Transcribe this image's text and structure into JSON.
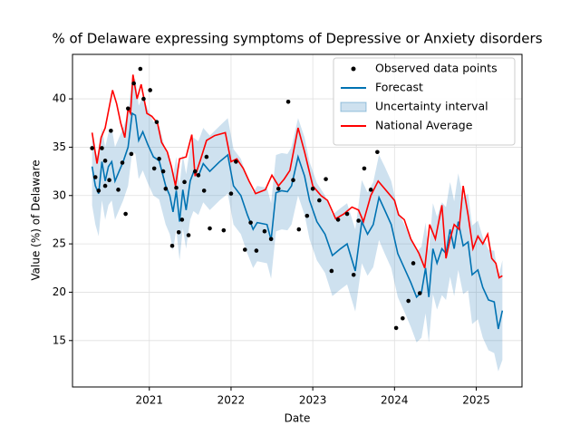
{
  "chart_data": {
    "type": "line",
    "title": "% of Delaware expressing symptoms of Depressive or Anxiety disorders",
    "x_label": "Date",
    "y_label": "Value (%) of Delaware",
    "xlim": [
      2020.06,
      2025.56
    ],
    "ylim": [
      10.2,
      44.6
    ],
    "xticks": [
      2021,
      2022,
      2023,
      2024,
      2025
    ],
    "yticks": [
      15,
      20,
      25,
      30,
      35,
      40
    ],
    "grid": true,
    "legend": "upper right",
    "series": [
      {
        "name": "Observed data points",
        "kind": "scatter",
        "color": "#000000",
        "x": [
          2020.3,
          2020.34,
          2020.38,
          2020.42,
          2020.46,
          2020.46,
          2020.51,
          2020.53,
          2020.62,
          2020.67,
          2020.71,
          2020.74,
          2020.78,
          2020.81,
          2020.89,
          2020.93,
          2021.01,
          2021.06,
          2021.09,
          2021.12,
          2021.17,
          2021.2,
          2021.28,
          2021.33,
          2021.36,
          2021.4,
          2021.43,
          2021.48,
          2021.56,
          2021.6,
          2021.67,
          2021.7,
          2021.74,
          2021.91,
          2022.0,
          2022.06,
          2022.17,
          2022.24,
          2022.31,
          2022.41,
          2022.49,
          2022.58,
          2022.7,
          2022.76,
          2022.83,
          2022.93,
          2023.0,
          2023.08,
          2023.16,
          2023.23,
          2023.31,
          2023.42,
          2023.5,
          2023.56,
          2023.63,
          2023.71,
          2023.79,
          2024.02,
          2024.1,
          2024.17,
          2024.23,
          2024.31
        ],
        "values": [
          34.9,
          31.9,
          30.5,
          34.9,
          33.6,
          31.0,
          31.6,
          36.7,
          30.6,
          33.4,
          28.1,
          39.0,
          34.3,
          41.6,
          43.1,
          40.0,
          40.9,
          32.8,
          37.6,
          33.8,
          32.5,
          30.7,
          24.8,
          30.8,
          26.2,
          27.5,
          31.4,
          25.9,
          32.5,
          32.1,
          30.5,
          34.0,
          26.6,
          26.4,
          30.2,
          33.5,
          24.4,
          27.2,
          24.3,
          26.3,
          25.5,
          30.7,
          39.7,
          31.6,
          26.5,
          27.9,
          30.7,
          29.5,
          31.7,
          22.2,
          27.5,
          28.1,
          21.8,
          27.4,
          32.8,
          30.6,
          34.5,
          16.3,
          17.3,
          19.1,
          23.0,
          19.9
        ]
      },
      {
        "name": "Forecast",
        "kind": "line",
        "color": "#0072b2",
        "x": [
          2020.3,
          2020.34,
          2020.38,
          2020.42,
          2020.46,
          2020.5,
          2020.54,
          2020.58,
          2020.63,
          2020.68,
          2020.74,
          2020.79,
          2020.83,
          2020.87,
          2020.92,
          2020.98,
          2021.05,
          2021.12,
          2021.2,
          2021.25,
          2021.29,
          2021.33,
          2021.37,
          2021.41,
          2021.45,
          2021.5,
          2021.54,
          2021.6,
          2021.66,
          2021.74,
          2021.86,
          2021.96,
          2022.03,
          2022.12,
          2022.2,
          2022.27,
          2022.32,
          2022.44,
          2022.49,
          2022.55,
          2022.62,
          2022.69,
          2022.74,
          2022.82,
          2022.9,
          2022.96,
          2023.05,
          2023.15,
          2023.24,
          2023.34,
          2023.42,
          2023.52,
          2023.6,
          2023.67,
          2023.74,
          2023.81,
          2023.88,
          2023.96,
          2024.04,
          2024.12,
          2024.2,
          2024.27,
          2024.33,
          2024.38,
          2024.42,
          2024.47,
          2024.52,
          2024.58,
          2024.63,
          2024.68,
          2024.73,
          2024.78,
          2024.84,
          2024.9,
          2024.95,
          2025.02,
          2025.08,
          2025.15,
          2025.22,
          2025.27,
          2025.32
        ],
        "values": [
          33.0,
          31.0,
          30.2,
          33.5,
          31.5,
          33.0,
          33.5,
          31.5,
          32.5,
          33.5,
          35.0,
          38.5,
          38.3,
          35.7,
          36.6,
          35.3,
          34.0,
          33.6,
          31.0,
          30.0,
          28.3,
          30.5,
          27.3,
          30.6,
          28.5,
          31.5,
          32.4,
          32.0,
          33.3,
          32.5,
          33.5,
          34.2,
          31.0,
          30.0,
          28.0,
          26.5,
          27.2,
          27.0,
          25.4,
          30.3,
          30.5,
          30.4,
          31.0,
          34.0,
          32.0,
          29.5,
          27.3,
          26.0,
          23.8,
          24.5,
          25.0,
          22.2,
          27.3,
          26.0,
          27.0,
          29.8,
          28.5,
          27.0,
          24.0,
          22.5,
          21.0,
          19.5,
          20.0,
          22.5,
          19.5,
          24.5,
          23.0,
          24.5,
          24.0,
          26.5,
          24.5,
          27.3,
          24.8,
          25.2,
          21.8,
          22.3,
          20.5,
          19.2,
          19.0,
          16.2,
          18.1
        ]
      },
      {
        "name": "Uncertainty interval",
        "kind": "band",
        "color": "#1f77b4",
        "x": [
          2020.3,
          2020.34,
          2020.38,
          2020.42,
          2020.46,
          2020.5,
          2020.54,
          2020.58,
          2020.63,
          2020.68,
          2020.74,
          2020.79,
          2020.83,
          2020.87,
          2020.92,
          2020.98,
          2021.05,
          2021.12,
          2021.2,
          2021.25,
          2021.29,
          2021.33,
          2021.37,
          2021.41,
          2021.45,
          2021.5,
          2021.54,
          2021.6,
          2021.66,
          2021.74,
          2021.86,
          2021.96,
          2022.03,
          2022.12,
          2022.2,
          2022.27,
          2022.32,
          2022.44,
          2022.49,
          2022.55,
          2022.62,
          2022.69,
          2022.74,
          2022.82,
          2022.9,
          2022.96,
          2023.05,
          2023.15,
          2023.24,
          2023.34,
          2023.42,
          2023.52,
          2023.6,
          2023.67,
          2023.74,
          2023.81,
          2023.88,
          2023.96,
          2024.04,
          2024.12,
          2024.2,
          2024.27,
          2024.33,
          2024.38,
          2024.42,
          2024.47,
          2024.52,
          2024.58,
          2024.63,
          2024.68,
          2024.73,
          2024.78,
          2024.84,
          2024.9,
          2024.95,
          2025.02,
          2025.08,
          2025.15,
          2025.22,
          2025.27,
          2025.32
        ],
        "lower": [
          29.0,
          27.0,
          25.8,
          29.5,
          27.5,
          29.0,
          29.5,
          27.5,
          28.5,
          29.5,
          31.0,
          34.5,
          34.3,
          31.7,
          32.6,
          31.3,
          30.0,
          29.6,
          27.0,
          26.0,
          24.3,
          26.5,
          23.3,
          26.6,
          24.5,
          27.5,
          28.4,
          28.0,
          29.3,
          28.5,
          29.5,
          30.2,
          27.0,
          26.0,
          24.0,
          22.5,
          23.2,
          23.0,
          21.4,
          26.3,
          26.5,
          26.4,
          27.0,
          30.0,
          28.0,
          25.5,
          23.3,
          22.0,
          19.6,
          20.3,
          20.8,
          18.0,
          23.0,
          21.7,
          22.6,
          25.4,
          24.0,
          22.5,
          19.5,
          18.0,
          16.4,
          14.8,
          15.3,
          17.8,
          14.8,
          19.8,
          18.2,
          19.7,
          19.2,
          21.6,
          19.6,
          22.3,
          19.8,
          20.2,
          16.7,
          17.2,
          15.3,
          14.0,
          13.7,
          11.8,
          13.0
        ],
        "upper": [
          36.5,
          34.5,
          33.8,
          37.0,
          35.0,
          36.5,
          37.0,
          35.0,
          36.0,
          37.0,
          38.5,
          42.2,
          42.0,
          39.3,
          40.2,
          39.0,
          37.6,
          37.2,
          34.6,
          33.6,
          32.0,
          34.0,
          31.0,
          34.2,
          32.2,
          35.0,
          36.0,
          35.6,
          37.0,
          36.2,
          37.2,
          38.0,
          34.8,
          33.8,
          31.8,
          30.3,
          31.0,
          30.8,
          29.2,
          34.2,
          34.4,
          34.3,
          35.0,
          38.0,
          36.0,
          33.5,
          31.3,
          30.0,
          28.0,
          28.7,
          29.2,
          26.5,
          31.6,
          30.3,
          31.4,
          34.2,
          33.0,
          31.5,
          28.5,
          27.0,
          25.6,
          24.2,
          24.7,
          27.2,
          24.2,
          29.2,
          27.8,
          29.3,
          28.8,
          31.4,
          29.4,
          32.3,
          29.8,
          30.2,
          26.9,
          27.4,
          25.7,
          24.4,
          24.3,
          21.5,
          23.3
        ]
      },
      {
        "name": "National Average",
        "kind": "line",
        "color": "#ff0000",
        "x": [
          2020.3,
          2020.36,
          2020.41,
          2020.46,
          2020.55,
          2020.6,
          2020.65,
          2020.7,
          2020.74,
          2020.77,
          2020.8,
          2020.85,
          2020.9,
          2020.97,
          2021.03,
          2021.1,
          2021.15,
          2021.22,
          2021.27,
          2021.32,
          2021.37,
          2021.45,
          2021.52,
          2021.56,
          2021.63,
          2021.7,
          2021.8,
          2021.93,
          2022.0,
          2022.07,
          2022.15,
          2022.22,
          2022.3,
          2022.42,
          2022.5,
          2022.58,
          2022.65,
          2022.72,
          2022.82,
          2022.9,
          2023.0,
          2023.1,
          2023.18,
          2023.28,
          2023.38,
          2023.48,
          2023.56,
          2023.62,
          2023.71,
          2023.8,
          2023.9,
          2024.0,
          2024.05,
          2024.12,
          2024.2,
          2024.3,
          2024.37,
          2024.43,
          2024.5,
          2024.58,
          2024.63,
          2024.68,
          2024.73,
          2024.79,
          2024.84,
          2024.9,
          2024.96,
          2025.02,
          2025.08,
          2025.14,
          2025.19,
          2025.24,
          2025.28,
          2025.32
        ],
        "values": [
          36.5,
          33.3,
          36.0,
          37.0,
          40.9,
          39.5,
          37.5,
          36.0,
          39.0,
          38.5,
          42.5,
          40.0,
          41.5,
          38.5,
          38.2,
          37.5,
          35.5,
          34.5,
          33.0,
          31.0,
          33.8,
          34.0,
          36.3,
          32.0,
          33.8,
          35.7,
          36.2,
          36.5,
          33.5,
          33.8,
          32.8,
          31.5,
          30.2,
          30.6,
          32.1,
          31.0,
          31.7,
          32.6,
          37.0,
          34.5,
          31.0,
          30.0,
          29.5,
          27.6,
          28.1,
          28.8,
          28.5,
          27.3,
          30.0,
          31.5,
          30.5,
          29.5,
          28.0,
          27.5,
          25.5,
          24.0,
          22.5,
          27.0,
          25.5,
          29.0,
          23.5,
          25.5,
          27.0,
          26.5,
          31.0,
          28.0,
          24.5,
          25.8,
          25.0,
          26.0,
          23.5,
          23.0,
          21.5,
          21.7
        ]
      }
    ]
  }
}
